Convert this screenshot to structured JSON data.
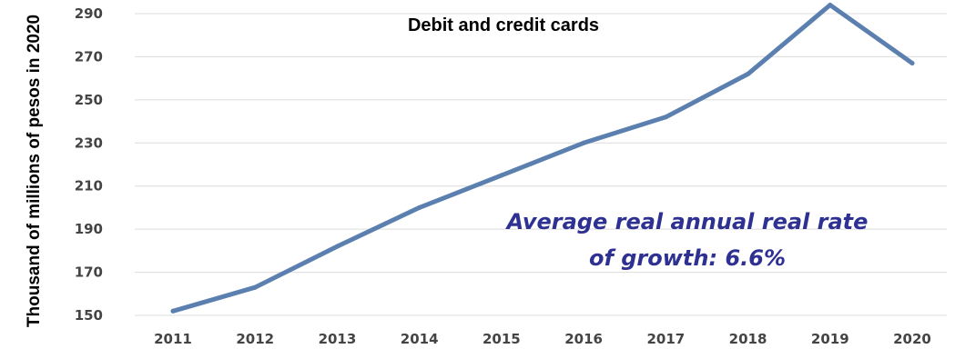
{
  "chart_data": {
    "type": "line",
    "title": "Debit and  credit cards",
    "xlabel": "",
    "ylabel": "Thousand of  millions of pesos in 2020",
    "categories": [
      "2011",
      "2012",
      "2013",
      "2014",
      "2015",
      "2016",
      "2017",
      "2018",
      "2019",
      "2020"
    ],
    "series": [
      {
        "values": [
          152,
          163,
          182,
          200,
          215,
          230,
          242,
          262,
          294,
          267
        ]
      }
    ],
    "yticks": [
      "150",
      "170",
      "190",
      "210",
      "230",
      "250",
      "270",
      "290"
    ],
    "ylim": [
      150,
      290
    ],
    "grid": true,
    "legend": "none",
    "annotation": {
      "line1": "Average real annual real rate",
      "line2": "of growth: 6.6%"
    },
    "colors": {
      "line": "#5b80b0",
      "grid": "#dcdcdc",
      "annotation": "#2e3192"
    }
  }
}
